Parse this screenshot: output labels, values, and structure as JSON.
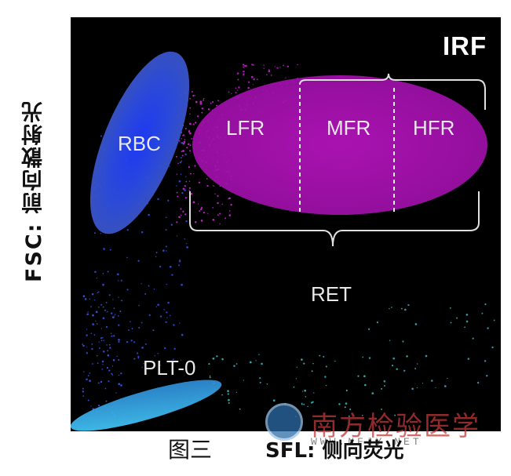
{
  "y_axis_label": "FSC: 前向散射光",
  "x_axis_label": "SFL: 侧向荧光",
  "caption": "图三",
  "gates": {
    "rbc": "RBC",
    "lfr": "LFR",
    "mfr": "MFR",
    "hfr": "HFR",
    "trf": "IRF",
    "ret": "RET",
    "plt": "PLT-0"
  },
  "watermark": {
    "text": "南方检验医学",
    "sub": "WWW.NFJY.NET"
  },
  "colors": {
    "background": "#000000",
    "rbc": "#2f4fe0",
    "ret": "#b015b8",
    "plt": "#39b8ee",
    "bracket": "#e0e0e0"
  }
}
